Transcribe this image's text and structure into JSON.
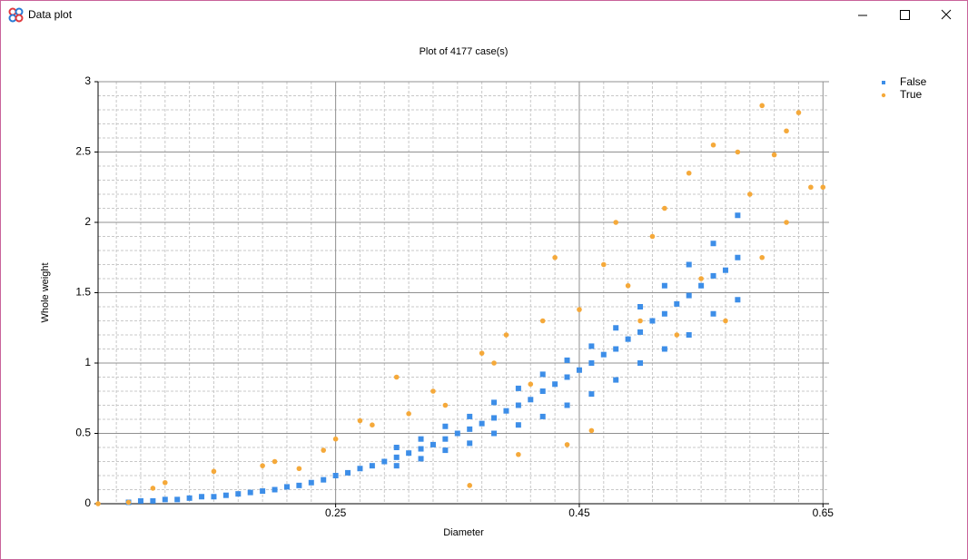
{
  "window_title": "Data plot",
  "chart_data": {
    "type": "scatter",
    "title": "Plot of 4177 case(s)",
    "x_label": "Diameter",
    "y_label": "Whole weight",
    "xlim": [
      0.055,
      0.655
    ],
    "ylim": [
      0,
      3
    ],
    "xticks": [
      0.25,
      0.45,
      0.65
    ],
    "yticks": [
      0,
      0.5,
      1,
      1.5,
      2,
      2.5,
      3
    ],
    "grid": true,
    "legend": "top-right",
    "series": [
      {
        "name": "False",
        "color": "#3d8ee8",
        "marker": "square",
        "x": [
          0.08,
          0.09,
          0.1,
          0.11,
          0.12,
          0.13,
          0.14,
          0.15,
          0.16,
          0.17,
          0.18,
          0.19,
          0.2,
          0.21,
          0.22,
          0.23,
          0.24,
          0.25,
          0.26,
          0.27,
          0.28,
          0.29,
          0.3,
          0.31,
          0.32,
          0.33,
          0.34,
          0.35,
          0.36,
          0.37,
          0.38,
          0.39,
          0.4,
          0.41,
          0.42,
          0.43,
          0.44,
          0.45,
          0.46,
          0.47,
          0.48,
          0.49,
          0.5,
          0.51,
          0.52,
          0.53,
          0.54,
          0.55,
          0.56,
          0.57,
          0.58,
          0.3,
          0.32,
          0.34,
          0.36,
          0.38,
          0.4,
          0.42,
          0.44,
          0.46,
          0.48,
          0.5,
          0.52,
          0.54,
          0.56,
          0.58,
          0.3,
          0.32,
          0.34,
          0.36,
          0.38,
          0.4,
          0.42,
          0.44,
          0.46,
          0.48,
          0.5,
          0.52,
          0.54,
          0.56,
          0.58
        ],
        "values": [
          0.01,
          0.02,
          0.02,
          0.03,
          0.03,
          0.04,
          0.05,
          0.05,
          0.06,
          0.07,
          0.08,
          0.09,
          0.1,
          0.12,
          0.13,
          0.15,
          0.17,
          0.2,
          0.22,
          0.25,
          0.27,
          0.3,
          0.33,
          0.36,
          0.39,
          0.42,
          0.46,
          0.5,
          0.53,
          0.57,
          0.61,
          0.66,
          0.7,
          0.74,
          0.8,
          0.85,
          0.9,
          0.95,
          1.0,
          1.06,
          1.1,
          1.17,
          1.22,
          1.3,
          1.35,
          1.42,
          1.48,
          1.55,
          1.62,
          1.66,
          1.75,
          0.4,
          0.46,
          0.55,
          0.62,
          0.72,
          0.82,
          0.92,
          1.02,
          1.12,
          1.25,
          1.4,
          1.55,
          1.7,
          1.85,
          2.05,
          0.27,
          0.32,
          0.38,
          0.43,
          0.5,
          0.56,
          0.62,
          0.7,
          0.78,
          0.88,
          1.0,
          1.1,
          1.2,
          1.35,
          1.45
        ]
      },
      {
        "name": "True",
        "color": "#f5a93a",
        "marker": "circle",
        "x": [
          0.055,
          0.08,
          0.1,
          0.11,
          0.15,
          0.19,
          0.2,
          0.22,
          0.24,
          0.25,
          0.27,
          0.28,
          0.3,
          0.31,
          0.33,
          0.34,
          0.36,
          0.37,
          0.38,
          0.39,
          0.4,
          0.41,
          0.42,
          0.43,
          0.44,
          0.45,
          0.46,
          0.47,
          0.48,
          0.49,
          0.5,
          0.51,
          0.52,
          0.53,
          0.54,
          0.55,
          0.56,
          0.57,
          0.58,
          0.59,
          0.6,
          0.61,
          0.62,
          0.63,
          0.64,
          0.65,
          0.62,
          0.6
        ],
        "values": [
          0,
          0.01,
          0.11,
          0.15,
          0.23,
          0.27,
          0.3,
          0.25,
          0.38,
          0.46,
          0.59,
          0.56,
          0.9,
          0.64,
          0.8,
          0.7,
          0.13,
          1.07,
          1.0,
          1.2,
          0.35,
          0.85,
          1.3,
          1.75,
          0.42,
          1.38,
          0.52,
          1.7,
          2.0,
          1.55,
          1.3,
          1.9,
          2.1,
          1.2,
          2.35,
          1.6,
          2.55,
          1.3,
          2.5,
          2.2,
          2.83,
          2.48,
          2.65,
          2.78,
          2.25,
          2.25,
          2.0,
          1.75
        ]
      }
    ]
  }
}
